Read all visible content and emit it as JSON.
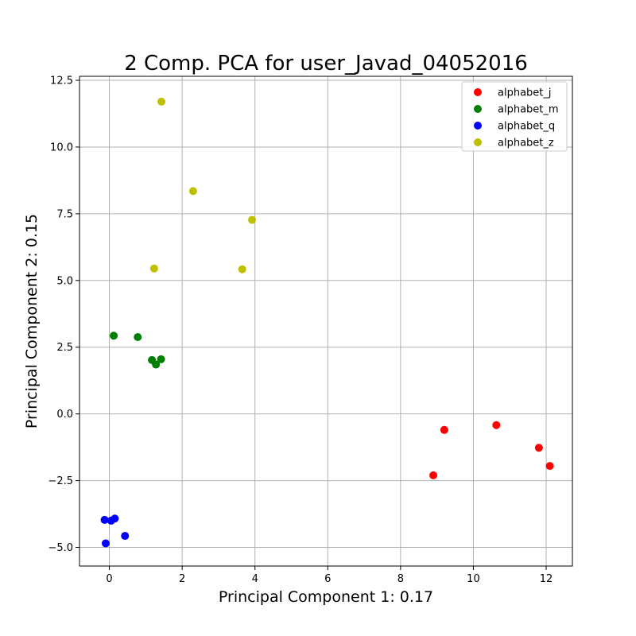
{
  "chart_data": {
    "type": "scatter",
    "title": "2 Comp. PCA for user_Javad_04052016",
    "xlabel": "Principal Component 1: 0.17",
    "ylabel": "Principal Component 2: 0.15",
    "xlim": [
      -0.82,
      12.72
    ],
    "ylim": [
      -5.7,
      12.65
    ],
    "xticks": [
      0,
      2,
      4,
      6,
      8,
      10,
      12
    ],
    "xtick_labels": [
      "0",
      "2",
      "4",
      "6",
      "8",
      "10",
      "12"
    ],
    "yticks": [
      -5.0,
      -2.5,
      0.0,
      2.5,
      5.0,
      7.5,
      10.0,
      12.5
    ],
    "ytick_labels": [
      "−5.0",
      "−2.5",
      "0.0",
      "2.5",
      "5.0",
      "7.5",
      "10.0",
      "12.5"
    ],
    "grid": true,
    "legend_position": "top-right",
    "series": [
      {
        "name": "alphabet_j",
        "color": "#ff0000",
        "points": [
          [
            9.2,
            -0.6
          ],
          [
            10.63,
            -0.42
          ],
          [
            11.8,
            -1.27
          ],
          [
            12.1,
            -1.95
          ],
          [
            8.9,
            -2.3
          ]
        ]
      },
      {
        "name": "alphabet_m",
        "color": "#008000",
        "points": [
          [
            0.12,
            2.93
          ],
          [
            0.78,
            2.88
          ],
          [
            1.17,
            2.02
          ],
          [
            1.42,
            2.05
          ],
          [
            1.28,
            1.85
          ]
        ]
      },
      {
        "name": "alphabet_q",
        "color": "#0000ff",
        "points": [
          [
            -0.13,
            -3.97
          ],
          [
            0.05,
            -4.0
          ],
          [
            0.15,
            -3.92
          ],
          [
            0.43,
            -4.57
          ],
          [
            -0.1,
            -4.85
          ]
        ]
      },
      {
        "name": "alphabet_z",
        "color": "#bfbf00",
        "points": [
          [
            1.43,
            11.7
          ],
          [
            2.3,
            8.35
          ],
          [
            3.92,
            7.27
          ],
          [
            1.23,
            5.45
          ],
          [
            3.65,
            5.42
          ]
        ]
      }
    ]
  }
}
